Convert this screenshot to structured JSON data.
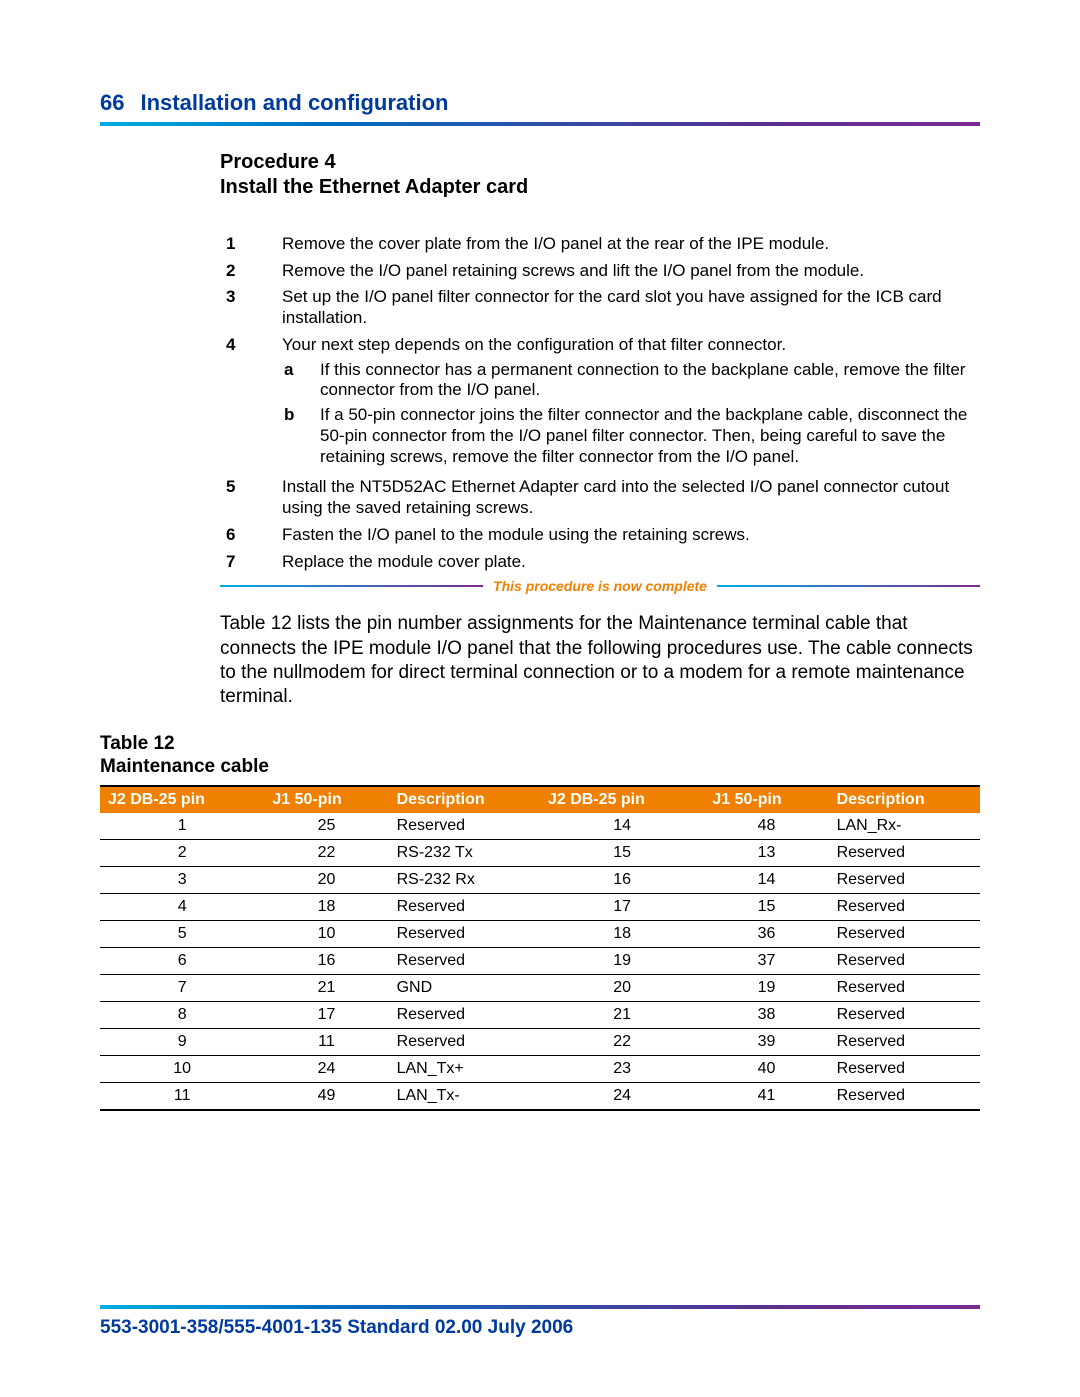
{
  "header": {
    "page_number": "66",
    "title": "Installation and configuration",
    "rule_gradient": [
      "#00aee0",
      "#0070c0",
      "#5a2f90",
      "#7a2a90"
    ],
    "title_color": "#003a9c",
    "title_fontsize": 22
  },
  "procedure": {
    "label": "Procedure 4",
    "title": "Install the Ethernet Adapter card",
    "steps": [
      {
        "num": "1",
        "text": "Remove the cover plate from the I/O panel at the rear of the IPE module."
      },
      {
        "num": "2",
        "text": "Remove the I/O panel retaining screws and lift the I/O panel from the module."
      },
      {
        "num": "3",
        "text": "Set up the I/O panel filter connector for the card slot you have assigned for the ICB card installation."
      },
      {
        "num": "4",
        "text": "Your next step depends on the configuration of that filter connector.",
        "substeps": [
          {
            "letter": "a",
            "text": "If this connector has a permanent connection to the backplane cable, remove the filter connector from the I/O panel."
          },
          {
            "letter": "b",
            "text": "If a 50-pin connector joins the filter connector and the backplane cable, disconnect the 50-pin connector from the I/O panel filter connector. Then, being careful to save the retaining screws, remove the filter connector from the I/O panel."
          }
        ]
      },
      {
        "num": "5",
        "text": "Install the NT5D52AC Ethernet Adapter card into the selected I/O panel connector cutout using the saved retaining screws."
      },
      {
        "num": "6",
        "text": "Fasten the I/O panel to the module using the retaining screws."
      },
      {
        "num": "7",
        "text": "Replace the module cover plate."
      }
    ],
    "complete_text": "This procedure is now complete",
    "complete_color": "#f08000"
  },
  "table_intro": "Table 12 lists the pin number assignments for the Maintenance terminal cable that connects the IPE module I/O panel that the following procedures use. The cable connects to the nullmodem for direct terminal connection or to a modem for a remote maintenance terminal.",
  "table": {
    "caption_line1": "Table 12",
    "caption_line2": "Maintenance cable",
    "header_bg": "#f08000",
    "header_fg": "#ffffff",
    "border_color": "#000000",
    "fontsize": 16,
    "columns": [
      "J2 DB-25 pin",
      "J1 50-pin",
      "Description",
      "J2 DB-25 pin",
      "J1 50-pin",
      "Description"
    ],
    "rows": [
      [
        "1",
        "25",
        "Reserved",
        "14",
        "48",
        "LAN_Rx-"
      ],
      [
        "2",
        "22",
        "RS-232 Tx",
        "15",
        "13",
        "Reserved"
      ],
      [
        "3",
        "20",
        "RS-232 Rx",
        "16",
        "14",
        "Reserved"
      ],
      [
        "4",
        "18",
        "Reserved",
        "17",
        "15",
        "Reserved"
      ],
      [
        "5",
        "10",
        "Reserved",
        "18",
        "36",
        "Reserved"
      ],
      [
        "6",
        "16",
        "Reserved",
        "19",
        "37",
        "Reserved"
      ],
      [
        "7",
        "21",
        "GND",
        "20",
        "19",
        "Reserved"
      ],
      [
        "8",
        "17",
        "Reserved",
        "21",
        "38",
        "Reserved"
      ],
      [
        "9",
        "11",
        "Reserved",
        "22",
        "39",
        "Reserved"
      ],
      [
        "10",
        "24",
        "LAN_Tx+",
        "23",
        "40",
        "Reserved"
      ],
      [
        "11",
        "49",
        "LAN_Tx-",
        "24",
        "41",
        "Reserved"
      ]
    ]
  },
  "footer": {
    "text": "553-3001-358/555-4001-135   Standard   02.00   July 2006",
    "color": "#003a9c",
    "fontsize": 19
  }
}
